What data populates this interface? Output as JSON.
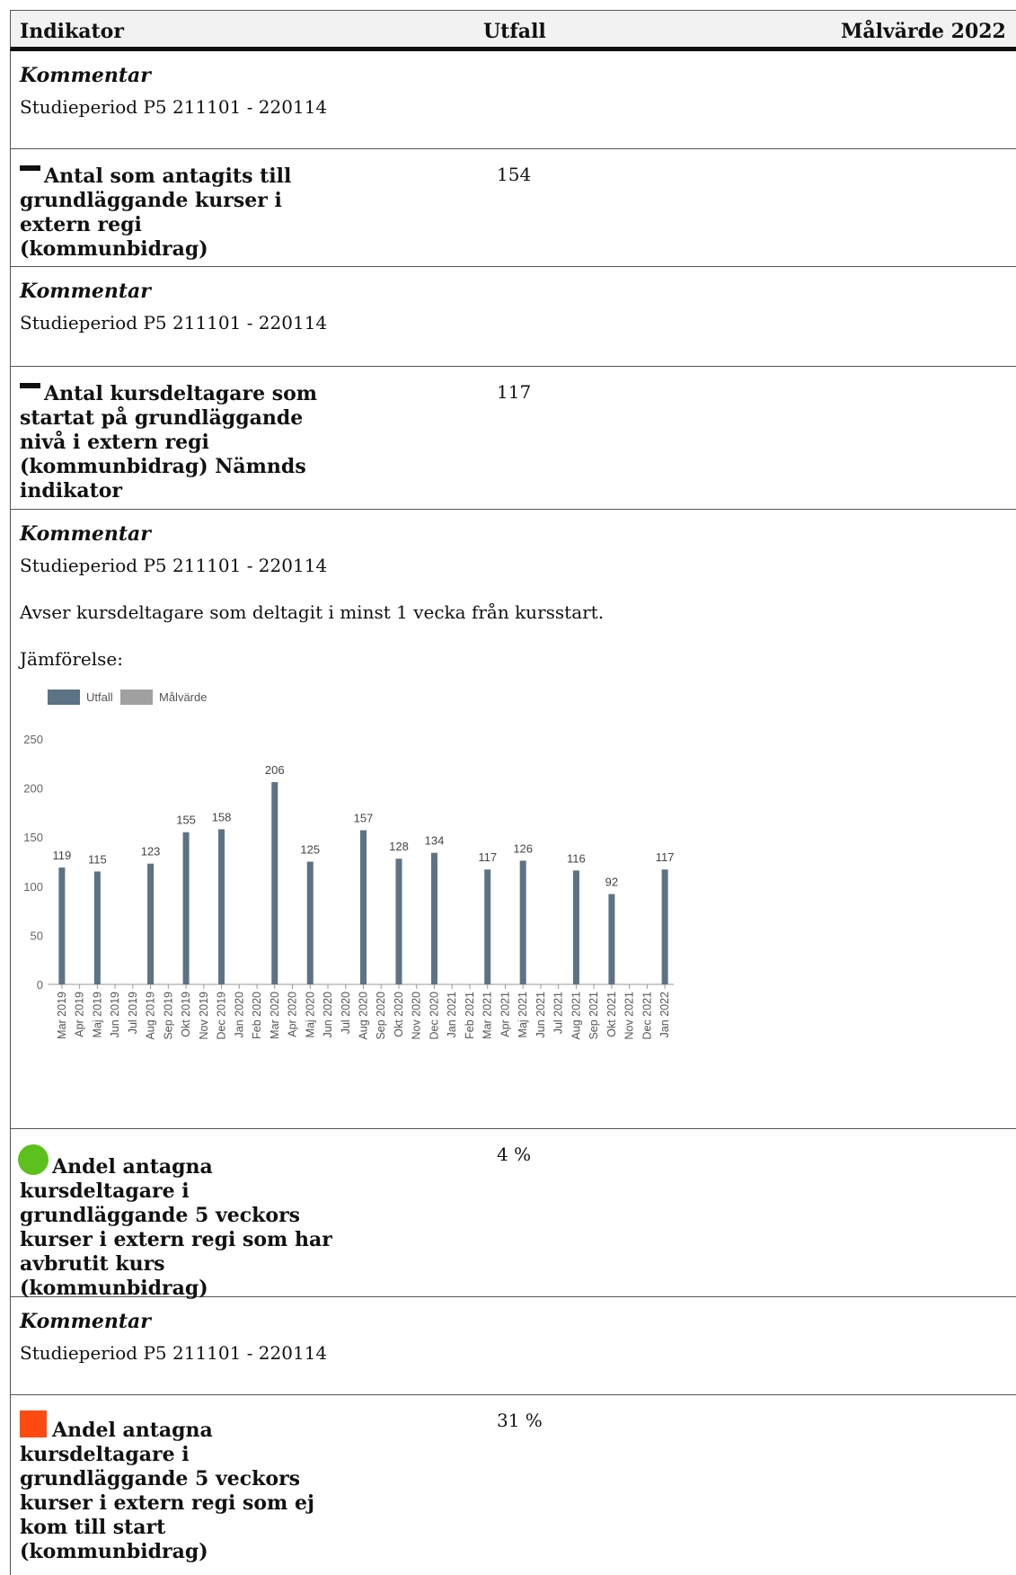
{
  "header": {
    "col1": "Indikator",
    "col2": "Utfall",
    "col3": "Målvärde 2022"
  },
  "rows": [
    {
      "kommentar": "Kommentar",
      "lines": [
        "Studieperiod P5 211101 - 220114"
      ]
    },
    {
      "indicator": "Antal som antagits till grundläggande kurser i extern regi (kommunbidrag)",
      "value": "154",
      "status_icon": "dash-icon"
    },
    {
      "kommentar": "Kommentar",
      "lines": [
        "Studieperiod P5 211101 - 220114"
      ]
    },
    {
      "indicator": "Antal kursdeltagare som startat på grundläggande nivå i extern regi (kommunbidrag) Nämnds indikator",
      "value": "117",
      "status_icon": "dash-icon"
    },
    {
      "kommentar": "Kommentar",
      "lines": [
        "Studieperiod P5 211101 - 220114",
        "Avser kursdeltagare som deltagit i minst 1 vecka från kursstart.",
        "Jämförelse:"
      ]
    },
    {
      "indicator": "Andel antagna kursdeltagare i grundläggande 5 veckors kurser i extern regi som har avbrutit kurs (kommunbidrag)",
      "value": "4 %",
      "status_icon": "green-circle-icon",
      "status_color": "#5cc11d"
    },
    {
      "kommentar": "Kommentar",
      "lines": [
        "Studieperiod P5 211101 - 220114"
      ]
    },
    {
      "indicator": "Andel antagna kursdeltagare i grundläggande 5 veckors kurser i extern regi som ej kom till start (kommunbidrag)",
      "value": "31 %",
      "status_icon": "red-square-icon",
      "status_color": "#ff4b10"
    }
  ],
  "chart_data": {
    "type": "bar",
    "legend": [
      "Utfall",
      "Målvärde"
    ],
    "legend_colors": [
      "#5b7384",
      "#a0a0a0"
    ],
    "legend_placement": "top-left",
    "bar_color": "#5b7384",
    "ylim": [
      0,
      250
    ],
    "yticks": [
      "0",
      "50",
      "100",
      "150",
      "200",
      "250"
    ],
    "categories": [
      "Mar 2019",
      "Apr 2019",
      "Maj 2019",
      "Jun 2019",
      "Jul 2019",
      "Aug 2019",
      "Sep 2019",
      "Okt 2019",
      "Nov 2019",
      "Dec 2019",
      "Jan 2020",
      "Feb 2020",
      "Mar 2020",
      "Apr 2020",
      "Maj 2020",
      "Jun 2020",
      "Jul 2020",
      "Aug 2020",
      "Sep 2020",
      "Okt 2020",
      "Nov 2020",
      "Dec 2020",
      "Jan 2021",
      "Feb 2021",
      "Mar 2021",
      "Apr 2021",
      "Maj 2021",
      "Jun 2021",
      "Jul 2021",
      "Aug 2021",
      "Sep 2021",
      "Okt 2021",
      "Nov 2021",
      "Dec 2021",
      "Jan 2022"
    ],
    "series": [
      {
        "name": "Utfall",
        "values": [
          119,
          null,
          115,
          null,
          null,
          123,
          null,
          155,
          null,
          158,
          null,
          null,
          206,
          null,
          125,
          null,
          null,
          157,
          null,
          128,
          null,
          134,
          null,
          null,
          117,
          null,
          126,
          null,
          null,
          116,
          null,
          92,
          null,
          null,
          117
        ]
      }
    ]
  }
}
